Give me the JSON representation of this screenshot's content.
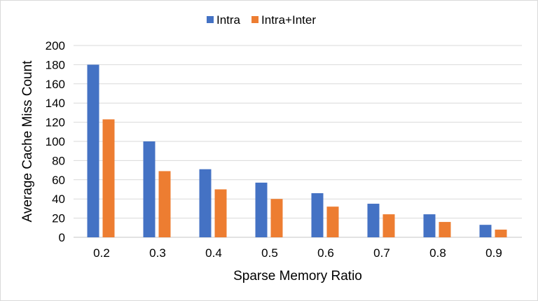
{
  "chart_data": {
    "type": "bar",
    "title": "",
    "xlabel": "Sparse Memory Ratio",
    "ylabel": "Average Cache Miss Count",
    "categories": [
      "0.2",
      "0.3",
      "0.4",
      "0.5",
      "0.6",
      "0.7",
      "0.8",
      "0.9"
    ],
    "series": [
      {
        "name": "Intra",
        "color": "#4472c4",
        "values": [
          180,
          100,
          71,
          57,
          46,
          35,
          24,
          13
        ]
      },
      {
        "name": "Intra+Inter",
        "color": "#ed7d31",
        "values": [
          123,
          69,
          50,
          40,
          32,
          24,
          16,
          8
        ]
      }
    ],
    "ylim": [
      0,
      200
    ],
    "yticks": [
      "0",
      "20",
      "40",
      "60",
      "80",
      "100",
      "120",
      "140",
      "160",
      "180",
      "200"
    ],
    "grid": true,
    "legend": "top-center"
  }
}
